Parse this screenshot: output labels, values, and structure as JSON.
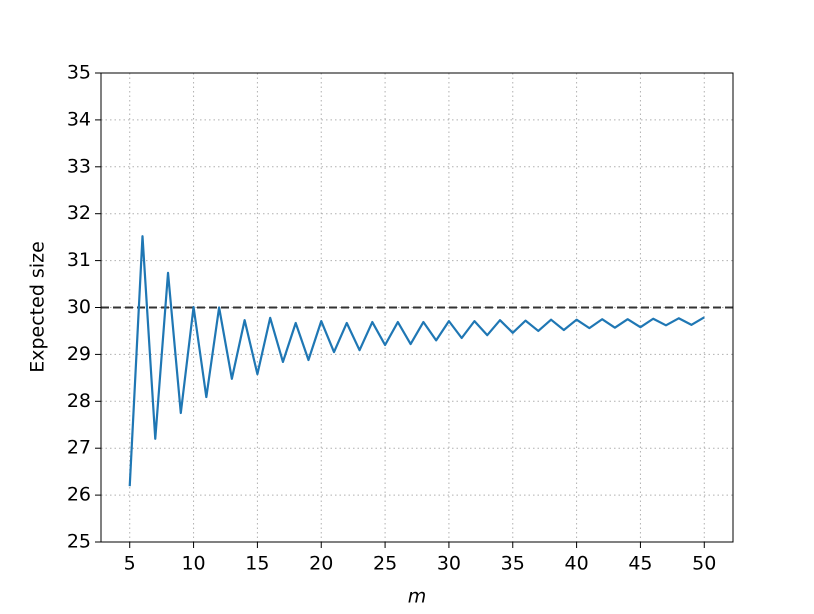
{
  "chart_data": {
    "type": "line",
    "xlabel": "m",
    "ylabel": "Expected size",
    "x": [
      5,
      6,
      7,
      8,
      9,
      10,
      11,
      12,
      13,
      14,
      15,
      16,
      17,
      18,
      19,
      20,
      21,
      22,
      23,
      24,
      25,
      26,
      27,
      28,
      29,
      30,
      31,
      32,
      33,
      34,
      35,
      36,
      37,
      38,
      39,
      40,
      41,
      42,
      43,
      44,
      45,
      46,
      47,
      48,
      49,
      50
    ],
    "series": [
      {
        "color": "#1f77b4",
        "values": [
          26.19,
          31.52,
          27.2,
          30.74,
          27.75,
          30.01,
          28.09,
          30.0,
          28.48,
          29.73,
          28.58,
          29.78,
          28.84,
          29.67,
          28.88,
          29.71,
          29.05,
          29.67,
          29.09,
          29.69,
          29.2,
          29.69,
          29.22,
          29.69,
          29.3,
          29.71,
          29.35,
          29.71,
          29.41,
          29.73,
          29.46,
          29.72,
          29.5,
          29.74,
          29.52,
          29.74,
          29.56,
          29.75,
          29.57,
          29.75,
          29.58,
          29.76,
          29.62,
          29.77,
          29.63,
          29.79
        ]
      }
    ],
    "hline": 30,
    "hline_color": "#333333",
    "xlim": [
      2.75,
      52.25
    ],
    "xticks": [
      5,
      10,
      15,
      20,
      25,
      30,
      35,
      40,
      45,
      50
    ],
    "ylim": [
      25,
      35
    ],
    "yticks": [
      25,
      26,
      27,
      28,
      29,
      30,
      31,
      32,
      33,
      34,
      35
    ],
    "grid": true
  }
}
